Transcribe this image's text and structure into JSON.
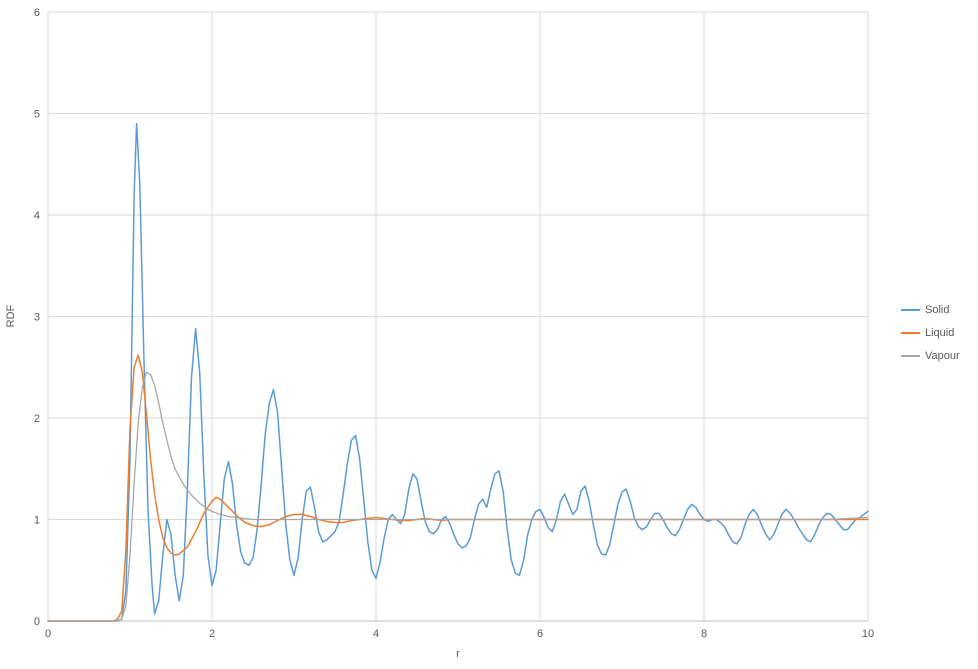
{
  "chart_data": {
    "type": "line",
    "title": "",
    "xlabel": "r",
    "ylabel": "RDF",
    "xlim": [
      0,
      10
    ],
    "ylim": [
      0,
      6
    ],
    "x_ticks": [
      0,
      2,
      4,
      6,
      8,
      10
    ],
    "y_ticks": [
      0,
      1,
      2,
      3,
      4,
      5,
      6
    ],
    "grid": true,
    "legend_position": "right",
    "grid_color": "#D9D9D9",
    "axis_color": "#BFBFBF",
    "text_color": "#595959",
    "background": "#FFFFFF",
    "series": [
      {
        "name": "Solid",
        "color": "#5B9BD5",
        "width": 1.5,
        "points": [
          [
            0,
            0
          ],
          [
            0.5,
            0
          ],
          [
            0.8,
            0
          ],
          [
            0.85,
            0
          ],
          [
            0.9,
            0.02
          ],
          [
            0.95,
            0.3
          ],
          [
            1.0,
            1.6
          ],
          [
            1.05,
            4.2
          ],
          [
            1.08,
            4.9
          ],
          [
            1.12,
            4.3
          ],
          [
            1.17,
            2.6
          ],
          [
            1.22,
            1.1
          ],
          [
            1.27,
            0.35
          ],
          [
            1.3,
            0.07
          ],
          [
            1.35,
            0.2
          ],
          [
            1.4,
            0.65
          ],
          [
            1.45,
            1.0
          ],
          [
            1.5,
            0.85
          ],
          [
            1.55,
            0.45
          ],
          [
            1.6,
            0.2
          ],
          [
            1.65,
            0.45
          ],
          [
            1.7,
            1.3
          ],
          [
            1.75,
            2.4
          ],
          [
            1.8,
            2.88
          ],
          [
            1.85,
            2.45
          ],
          [
            1.9,
            1.45
          ],
          [
            1.95,
            0.65
          ],
          [
            2.0,
            0.35
          ],
          [
            2.05,
            0.5
          ],
          [
            2.1,
            0.95
          ],
          [
            2.15,
            1.4
          ],
          [
            2.2,
            1.57
          ],
          [
            2.25,
            1.35
          ],
          [
            2.3,
            0.95
          ],
          [
            2.35,
            0.68
          ],
          [
            2.4,
            0.57
          ],
          [
            2.45,
            0.55
          ],
          [
            2.5,
            0.62
          ],
          [
            2.55,
            0.9
          ],
          [
            2.6,
            1.35
          ],
          [
            2.65,
            1.85
          ],
          [
            2.7,
            2.15
          ],
          [
            2.75,
            2.28
          ],
          [
            2.8,
            2.05
          ],
          [
            2.85,
            1.5
          ],
          [
            2.9,
            0.95
          ],
          [
            2.95,
            0.6
          ],
          [
            3.0,
            0.45
          ],
          [
            3.05,
            0.62
          ],
          [
            3.1,
            1.0
          ],
          [
            3.15,
            1.28
          ],
          [
            3.2,
            1.32
          ],
          [
            3.25,
            1.12
          ],
          [
            3.3,
            0.88
          ],
          [
            3.35,
            0.78
          ],
          [
            3.4,
            0.8
          ],
          [
            3.45,
            0.84
          ],
          [
            3.5,
            0.88
          ],
          [
            3.55,
            0.98
          ],
          [
            3.6,
            1.25
          ],
          [
            3.65,
            1.55
          ],
          [
            3.7,
            1.78
          ],
          [
            3.75,
            1.83
          ],
          [
            3.8,
            1.6
          ],
          [
            3.85,
            1.2
          ],
          [
            3.9,
            0.78
          ],
          [
            3.95,
            0.5
          ],
          [
            4.0,
            0.42
          ],
          [
            4.05,
            0.58
          ],
          [
            4.1,
            0.82
          ],
          [
            4.15,
            1.0
          ],
          [
            4.2,
            1.05
          ],
          [
            4.25,
            1.0
          ],
          [
            4.3,
            0.96
          ],
          [
            4.35,
            1.05
          ],
          [
            4.4,
            1.3
          ],
          [
            4.45,
            1.45
          ],
          [
            4.5,
            1.4
          ],
          [
            4.55,
            1.18
          ],
          [
            4.6,
            0.98
          ],
          [
            4.65,
            0.88
          ],
          [
            4.7,
            0.86
          ],
          [
            4.75,
            0.9
          ],
          [
            4.8,
            1.0
          ],
          [
            4.85,
            1.03
          ],
          [
            4.9,
            0.96
          ],
          [
            4.95,
            0.85
          ],
          [
            5.0,
            0.76
          ],
          [
            5.05,
            0.72
          ],
          [
            5.1,
            0.74
          ],
          [
            5.15,
            0.82
          ],
          [
            5.2,
            1.0
          ],
          [
            5.25,
            1.15
          ],
          [
            5.3,
            1.2
          ],
          [
            5.35,
            1.12
          ],
          [
            5.4,
            1.3
          ],
          [
            5.45,
            1.45
          ],
          [
            5.5,
            1.48
          ],
          [
            5.55,
            1.28
          ],
          [
            5.6,
            0.9
          ],
          [
            5.65,
            0.6
          ],
          [
            5.7,
            0.47
          ],
          [
            5.75,
            0.45
          ],
          [
            5.8,
            0.6
          ],
          [
            5.85,
            0.85
          ],
          [
            5.9,
            1.0
          ],
          [
            5.95,
            1.08
          ],
          [
            6.0,
            1.1
          ],
          [
            6.05,
            1.02
          ],
          [
            6.1,
            0.92
          ],
          [
            6.15,
            0.88
          ],
          [
            6.2,
            1.0
          ],
          [
            6.25,
            1.18
          ],
          [
            6.3,
            1.25
          ],
          [
            6.35,
            1.15
          ],
          [
            6.4,
            1.05
          ],
          [
            6.45,
            1.1
          ],
          [
            6.5,
            1.28
          ],
          [
            6.55,
            1.33
          ],
          [
            6.6,
            1.18
          ],
          [
            6.65,
            0.95
          ],
          [
            6.7,
            0.75
          ],
          [
            6.75,
            0.66
          ],
          [
            6.8,
            0.65
          ],
          [
            6.85,
            0.75
          ],
          [
            6.9,
            0.95
          ],
          [
            6.95,
            1.15
          ],
          [
            7.0,
            1.27
          ],
          [
            7.05,
            1.3
          ],
          [
            7.1,
            1.18
          ],
          [
            7.15,
            1.02
          ],
          [
            7.2,
            0.93
          ],
          [
            7.25,
            0.9
          ],
          [
            7.3,
            0.93
          ],
          [
            7.35,
            1.0
          ],
          [
            7.4,
            1.06
          ],
          [
            7.45,
            1.06
          ],
          [
            7.5,
            1.0
          ],
          [
            7.55,
            0.92
          ],
          [
            7.6,
            0.86
          ],
          [
            7.65,
            0.84
          ],
          [
            7.7,
            0.9
          ],
          [
            7.75,
            1.0
          ],
          [
            7.8,
            1.1
          ],
          [
            7.85,
            1.15
          ],
          [
            7.9,
            1.12
          ],
          [
            7.95,
            1.05
          ],
          [
            8.0,
            1.0
          ],
          [
            8.05,
            0.98
          ],
          [
            8.1,
            1.0
          ],
          [
            8.15,
            1.0
          ],
          [
            8.2,
            0.97
          ],
          [
            8.25,
            0.93
          ],
          [
            8.3,
            0.85
          ],
          [
            8.35,
            0.78
          ],
          [
            8.4,
            0.76
          ],
          [
            8.45,
            0.82
          ],
          [
            8.5,
            0.95
          ],
          [
            8.55,
            1.05
          ],
          [
            8.6,
            1.1
          ],
          [
            8.65,
            1.05
          ],
          [
            8.7,
            0.95
          ],
          [
            8.75,
            0.86
          ],
          [
            8.8,
            0.8
          ],
          [
            8.85,
            0.85
          ],
          [
            8.9,
            0.95
          ],
          [
            8.95,
            1.05
          ],
          [
            9.0,
            1.1
          ],
          [
            9.05,
            1.06
          ],
          [
            9.1,
            1.0
          ],
          [
            9.15,
            0.92
          ],
          [
            9.2,
            0.86
          ],
          [
            9.25,
            0.8
          ],
          [
            9.3,
            0.78
          ],
          [
            9.35,
            0.85
          ],
          [
            9.4,
            0.95
          ],
          [
            9.45,
            1.02
          ],
          [
            9.5,
            1.06
          ],
          [
            9.55,
            1.05
          ],
          [
            9.6,
            1.0
          ],
          [
            9.65,
            0.95
          ],
          [
            9.7,
            0.9
          ],
          [
            9.75,
            0.9
          ],
          [
            9.8,
            0.95
          ],
          [
            9.85,
            1.0
          ],
          [
            9.9,
            1.02
          ],
          [
            9.95,
            1.05
          ],
          [
            10.0,
            1.08
          ]
        ]
      },
      {
        "name": "Liquid",
        "color": "#ED7D31",
        "width": 1.5,
        "points": [
          [
            0,
            0
          ],
          [
            0.8,
            0
          ],
          [
            0.85,
            0.02
          ],
          [
            0.9,
            0.1
          ],
          [
            0.95,
            0.7
          ],
          [
            1.0,
            1.9
          ],
          [
            1.05,
            2.5
          ],
          [
            1.1,
            2.62
          ],
          [
            1.15,
            2.45
          ],
          [
            1.2,
            2.05
          ],
          [
            1.25,
            1.6
          ],
          [
            1.3,
            1.25
          ],
          [
            1.35,
            1.0
          ],
          [
            1.4,
            0.82
          ],
          [
            1.45,
            0.72
          ],
          [
            1.5,
            0.67
          ],
          [
            1.55,
            0.65
          ],
          [
            1.6,
            0.66
          ],
          [
            1.7,
            0.73
          ],
          [
            1.8,
            0.88
          ],
          [
            1.9,
            1.06
          ],
          [
            2.0,
            1.18
          ],
          [
            2.05,
            1.22
          ],
          [
            2.1,
            1.2
          ],
          [
            2.2,
            1.12
          ],
          [
            2.3,
            1.04
          ],
          [
            2.4,
            0.97
          ],
          [
            2.5,
            0.94
          ],
          [
            2.6,
            0.93
          ],
          [
            2.7,
            0.95
          ],
          [
            2.8,
            0.99
          ],
          [
            2.9,
            1.03
          ],
          [
            3.0,
            1.05
          ],
          [
            3.1,
            1.05
          ],
          [
            3.2,
            1.03
          ],
          [
            3.3,
            1.0
          ],
          [
            3.4,
            0.98
          ],
          [
            3.5,
            0.97
          ],
          [
            3.6,
            0.97
          ],
          [
            3.7,
            0.99
          ],
          [
            3.8,
            1.0
          ],
          [
            3.9,
            1.01
          ],
          [
            4.0,
            1.02
          ],
          [
            4.1,
            1.01
          ],
          [
            4.2,
            1.0
          ],
          [
            4.3,
            0.99
          ],
          [
            4.4,
            0.99
          ],
          [
            4.5,
            1.0
          ],
          [
            4.6,
            1.01
          ],
          [
            4.7,
            1.0
          ],
          [
            4.8,
            0.99
          ],
          [
            4.9,
            1.0
          ],
          [
            5.0,
            1.0
          ],
          [
            5.2,
            1.0
          ],
          [
            5.4,
            1.0
          ],
          [
            5.6,
            1.0
          ],
          [
            5.8,
            1.0
          ],
          [
            6.0,
            1.0
          ],
          [
            6.5,
            1.0
          ],
          [
            7.0,
            1.0
          ],
          [
            7.5,
            1.0
          ],
          [
            8.0,
            1.0
          ],
          [
            8.5,
            1.0
          ],
          [
            9.0,
            1.0
          ],
          [
            9.5,
            1.0
          ],
          [
            10.0,
            1.0
          ]
        ]
      },
      {
        "name": "Vapour",
        "color": "#A5A5A5",
        "width": 1.25,
        "points": [
          [
            0,
            0
          ],
          [
            0.85,
            0
          ],
          [
            0.9,
            0.02
          ],
          [
            0.95,
            0.15
          ],
          [
            1.0,
            0.65
          ],
          [
            1.05,
            1.35
          ],
          [
            1.1,
            1.95
          ],
          [
            1.15,
            2.3
          ],
          [
            1.2,
            2.45
          ],
          [
            1.25,
            2.43
          ],
          [
            1.3,
            2.32
          ],
          [
            1.35,
            2.15
          ],
          [
            1.4,
            1.95
          ],
          [
            1.45,
            1.78
          ],
          [
            1.5,
            1.62
          ],
          [
            1.55,
            1.5
          ],
          [
            1.6,
            1.42
          ],
          [
            1.65,
            1.35
          ],
          [
            1.7,
            1.29
          ],
          [
            1.75,
            1.24
          ],
          [
            1.8,
            1.2
          ],
          [
            1.85,
            1.16
          ],
          [
            1.9,
            1.13
          ],
          [
            1.95,
            1.1
          ],
          [
            2.0,
            1.08
          ],
          [
            2.1,
            1.05
          ],
          [
            2.2,
            1.03
          ],
          [
            2.3,
            1.02
          ],
          [
            2.4,
            1.01
          ],
          [
            2.5,
            1.0
          ],
          [
            2.6,
            1.0
          ],
          [
            2.8,
            1.0
          ],
          [
            3.0,
            1.0
          ],
          [
            3.5,
            1.0
          ],
          [
            4.0,
            1.0
          ],
          [
            4.5,
            1.0
          ],
          [
            5.0,
            1.0
          ],
          [
            5.5,
            1.0
          ],
          [
            6.0,
            1.0
          ],
          [
            6.5,
            1.0
          ],
          [
            7.0,
            1.0
          ],
          [
            7.5,
            1.0
          ],
          [
            8.0,
            1.0
          ],
          [
            8.5,
            1.0
          ],
          [
            9.0,
            1.0
          ],
          [
            9.5,
            1.0
          ],
          [
            10.0,
            1.02
          ]
        ]
      }
    ]
  },
  "legend": {
    "items": [
      {
        "label": "Solid"
      },
      {
        "label": "Liquid"
      },
      {
        "label": "Vapour"
      }
    ]
  }
}
